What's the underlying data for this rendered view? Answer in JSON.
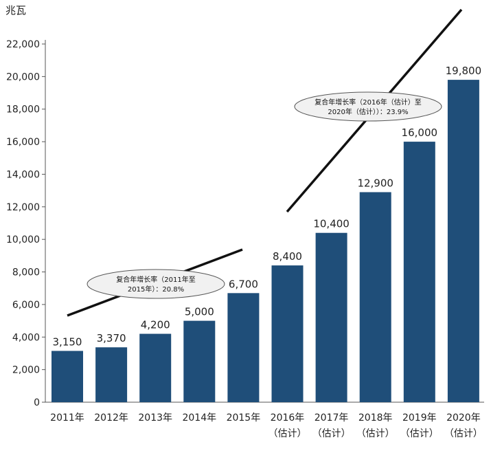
{
  "chart_data": {
    "type": "bar",
    "unit_label": "兆瓦",
    "categories": [
      [
        "2011年",
        ""
      ],
      [
        "2012年",
        ""
      ],
      [
        "2013年",
        ""
      ],
      [
        "2014年",
        ""
      ],
      [
        "2015年",
        ""
      ],
      [
        "2016年",
        "（估计）"
      ],
      [
        "2017年",
        "（估计）"
      ],
      [
        "2018年",
        "（估计）"
      ],
      [
        "2019年",
        "（估计）"
      ],
      [
        "2020年",
        "（估计）"
      ]
    ],
    "values": [
      3150,
      3370,
      4200,
      5000,
      6700,
      8400,
      10400,
      12900,
      16000,
      19800
    ],
    "value_labels": [
      "3,150",
      "3,370",
      "4,200",
      "5,000",
      "6,700",
      "8,400",
      "10,400",
      "12,900",
      "16,000",
      "19,800"
    ],
    "ylim": [
      0,
      22000
    ],
    "yticks": [
      0,
      2000,
      4000,
      6000,
      8000,
      10000,
      12000,
      14000,
      16000,
      18000,
      20000,
      22000
    ],
    "ytick_labels": [
      "0",
      "2,000",
      "4,000",
      "6,000",
      "8,000",
      "10,000",
      "12,000",
      "14,000",
      "16,000",
      "18,000",
      "20,000",
      "22,000"
    ],
    "bar_color": "#1f4e79",
    "trend_color": "#111111",
    "grid": false,
    "annotations": [
      {
        "lines": [
          "复合年增长率（2011年至",
          "2015年）：20.8%"
        ]
      },
      {
        "lines": [
          "复合年增长率（2016年（估计）至",
          "2020年（估计））：23.9%"
        ]
      }
    ]
  }
}
